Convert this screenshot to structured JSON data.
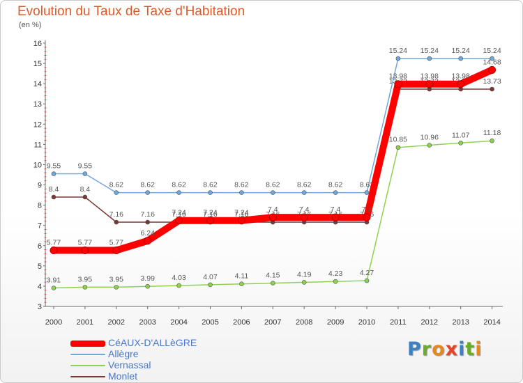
{
  "header": {
    "title": "Evolution du Taux de Taxe d'Habitation",
    "unit": "(en %)"
  },
  "logo": {
    "text": "Proxiti",
    "letters": [
      {
        "ch": "P",
        "color": "#3b82c4"
      },
      {
        "ch": "r",
        "color": "#6aad2a"
      },
      {
        "ch": "o",
        "color": "#e5891f"
      },
      {
        "ch": "x",
        "color": "#e2452a"
      },
      {
        "ch": "i",
        "color": "#3b82c4"
      },
      {
        "ch": "t",
        "color": "#6aad2a"
      },
      {
        "ch": "i",
        "color": "#e5891f"
      }
    ]
  },
  "chart_data": {
    "type": "line",
    "title": "Evolution du Taux de Taxe d'Habitation",
    "ylabel": "(en %)",
    "xlabel": "",
    "x": [
      "2000",
      "2001",
      "2002",
      "2003",
      "2004",
      "2005",
      "2006",
      "2007",
      "2008",
      "2009",
      "2010",
      "2011",
      "2012",
      "2013",
      "2014"
    ],
    "ylim": [
      3,
      16
    ],
    "yticks": [
      3,
      4,
      5,
      6,
      7,
      8,
      9,
      10,
      11,
      12,
      13,
      14,
      15,
      16
    ],
    "grid": false,
    "legend_position": "bottom-left",
    "series": [
      {
        "name": "Monlet",
        "color": "#7a3535",
        "values": [
          8.4,
          8.4,
          7.16,
          7.16,
          7.16,
          7.16,
          7.16,
          7.16,
          7.16,
          7.16,
          7.16,
          13.73,
          13.73,
          13.73,
          13.73
        ],
        "labels": [
          "8.4",
          "8.4",
          "7.16",
          "7.16",
          "7.16",
          "7.16",
          "7.16",
          "7.16",
          "7.16",
          "7.16",
          "7.16",
          "13.73",
          "13.73",
          "13.73",
          "13.73"
        ]
      },
      {
        "name": "Vernassal",
        "color": "#8fd14f",
        "values": [
          3.91,
          3.95,
          3.95,
          3.99,
          4.03,
          4.07,
          4.11,
          4.15,
          4.19,
          4.23,
          4.27,
          10.85,
          10.96,
          11.07,
          11.18
        ],
        "labels": [
          "3.91",
          "3.95",
          "3.95",
          "3.99",
          "4.03",
          "4.07",
          "4.11",
          "4.15",
          "4.19",
          "4.23",
          "4.27",
          "10.85",
          "10.96",
          "11.07",
          "11.18"
        ]
      },
      {
        "name": "Allègre",
        "color": "#6fa8dc",
        "values": [
          9.55,
          9.55,
          8.62,
          8.62,
          8.62,
          8.62,
          8.62,
          8.62,
          8.62,
          8.62,
          8.62,
          15.24,
          15.24,
          15.24,
          15.24
        ],
        "labels": [
          "9.55",
          "9.55",
          "8.62",
          "8.62",
          "8.62",
          "8.62",
          "8.62",
          "8.62",
          "8.62",
          "8.62",
          "8.62",
          "15.24",
          "15.24",
          "15.24",
          "15.24"
        ]
      },
      {
        "name": "CéAUX-D'ALLèGRE",
        "color": "#ff0000",
        "values": [
          5.77,
          5.77,
          5.77,
          6.24,
          7.24,
          7.24,
          7.24,
          7.4,
          7.4,
          7.4,
          7.4,
          13.98,
          13.98,
          13.98,
          14.68
        ],
        "labels": [
          "5.77",
          "5.77",
          "5.77",
          "6.24",
          "7.24",
          "7.24",
          "7.24",
          "7.4",
          "7.4",
          "7.4",
          "7.4",
          "13.98",
          "13.98",
          "13.98",
          "14.68"
        ]
      }
    ]
  },
  "legend": [
    {
      "name": "CéAUX-D'ALLèGRE",
      "color": "#ff0000"
    },
    {
      "name": "Allègre",
      "color": "#6fa8dc"
    },
    {
      "name": "Vernassal",
      "color": "#8fd14f"
    },
    {
      "name": "Monlet",
      "color": "#7a3535"
    }
  ]
}
